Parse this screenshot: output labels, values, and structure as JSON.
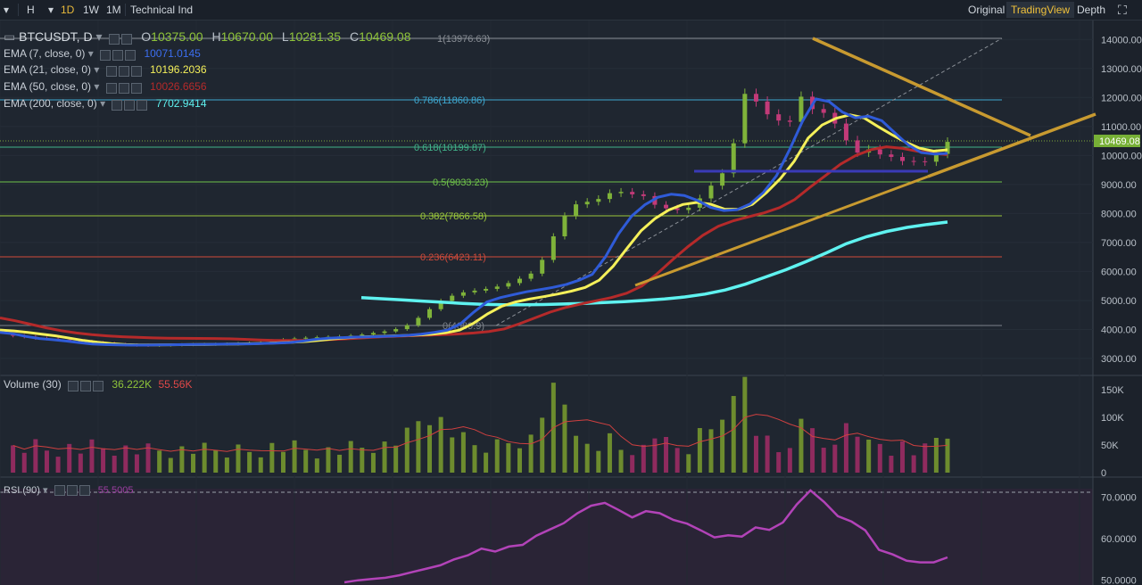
{
  "toolbar": {
    "arrow_label": "▾",
    "interval_label": "H",
    "intervals": [
      "1D",
      "1W",
      "1M"
    ],
    "active_interval": "1D",
    "indicator_label": "Technical Ind",
    "views": [
      "Original",
      "TradingView",
      "Depth"
    ],
    "active_view": "TradingView"
  },
  "header": {
    "symbol": "BTCUSDT, D",
    "open_label": "O",
    "open": "10375.00",
    "high_label": "H",
    "high": "10670.00",
    "low_label": "L",
    "low": "10281.35",
    "close_label": "C",
    "close": "10469.08"
  },
  "ema": [
    {
      "label": "EMA (7, close, 0)",
      "value": "10071.0145",
      "color": "#2f5bd8"
    },
    {
      "label": "EMA (21, close, 0)",
      "value": "10196.2036",
      "color": "#f5f05a"
    },
    {
      "label": "EMA (50, close, 0)",
      "value": "10026.6656",
      "color": "#b52a2a"
    },
    {
      "label": "EMA (200, close, 0)",
      "value": "7702.9414",
      "color": "#5ff2f0"
    }
  ],
  "price_label": "10469.08",
  "volume": {
    "label": "Volume (30)",
    "v1": "36.222K",
    "v2": "55.56K"
  },
  "rsi": {
    "label": "RSI (90)",
    "value": "55.5005"
  },
  "fib": [
    {
      "label": "1(13976.63)",
      "color": "#8a8f96"
    },
    {
      "label": "0.786(11860.86)",
      "color": "#3fa8d0"
    },
    {
      "label": "0.618(10199.87)",
      "color": "#41b28a"
    },
    {
      "label": "0.5(9033.23)",
      "color": "#6fc24a"
    },
    {
      "label": "0.382(7866.58)",
      "color": "#9cc83c"
    },
    {
      "label": "0.236(6423.11)",
      "color": "#d04a3a"
    },
    {
      "label": "0(4089.9)",
      "color": "#7d838b"
    }
  ],
  "price_axis": [
    "14000.00",
    "13000.00",
    "12000.00",
    "11000.00",
    "10000.00",
    "9000.00",
    "8000.00",
    "7000.00",
    "6000.00",
    "5000.00",
    "4000.00",
    "3000.00"
  ],
  "volume_axis": [
    "150K",
    "100K",
    "50K",
    "0"
  ],
  "rsi_axis": [
    "70.0000",
    "60.0000",
    "50.0000"
  ],
  "chart_data": {
    "type": "line",
    "title": "BTCUSDT, D",
    "price_ylim": [
      2600,
      14500
    ],
    "rsi_ylim": [
      48,
      72
    ],
    "candles": [
      3820,
      3785,
      3750,
      3700,
      3680,
      3650,
      3612,
      3590,
      3550,
      3520,
      3490,
      3470,
      3460,
      3455,
      3462,
      3470,
      3478,
      3486,
      3490,
      3495,
      3500,
      3515,
      3530,
      3560,
      3610,
      3650,
      3690,
      3715,
      3732,
      3746,
      3760,
      3790,
      3826,
      3880,
      3933,
      4013,
      4146,
      4400,
      4700,
      4988,
      5164,
      5280,
      5340,
      5400,
      5480,
      5600,
      5750,
      5927,
      6400,
      7212,
      7918,
      8315,
      8404,
      8500,
      8700,
      8745,
      8660,
      8600,
      8300,
      8180,
      8120,
      8200,
      8520,
      8960,
      9386,
      10420,
      12124,
      11861,
      11420,
      11204,
      11160,
      12027,
      11600,
      11470,
      11100,
      10520,
      10100,
      10209,
      10035,
      9950,
      9810,
      9800,
      9785,
      10056,
      10469
    ],
    "ema7": [
      3900,
      3850,
      3760,
      3690,
      3650,
      3602,
      3550,
      3500,
      3480,
      3470,
      3460,
      3462,
      3468,
      3474,
      3480,
      3485,
      3490,
      3495,
      3500,
      3505,
      3520,
      3530,
      3550,
      3600,
      3660,
      3700,
      3720,
      3738,
      3748,
      3762,
      3776,
      3800,
      3838,
      3900,
      3977,
      4200,
      4600,
      4950,
      5096,
      5200,
      5300,
      5370,
      5450,
      5550,
      5700,
      5900,
      6500,
      7300,
      7910,
      8300,
      8560,
      8665,
      8620,
      8450,
      8210,
      8100,
      8130,
      8330,
      8720,
      9300,
      10200,
      11200,
      11950,
      11860,
      11500,
      11300,
      11350,
      11200,
      10780,
      10370,
      10100,
      10050,
      10071
    ],
    "ema21": [
      3980,
      3950,
      3900,
      3840,
      3780,
      3700,
      3620,
      3560,
      3510,
      3480,
      3470,
      3471,
      3472,
      3476,
      3480,
      3486,
      3493,
      3500,
      3510,
      3522,
      3540,
      3560,
      3588,
      3630,
      3680,
      3720,
      3745,
      3760,
      3775,
      3790,
      3810,
      3840,
      3886,
      3980,
      4220,
      4540,
      4800,
      4950,
      5050,
      5130,
      5220,
      5320,
      5450,
      5700,
      6180,
      6800,
      7400,
      7820,
      8120,
      8310,
      8380,
      8320,
      8150,
      8140,
      8320,
      8720,
      9200,
      9800,
      10600,
      11050,
      11280,
      11400,
      11300,
      11000,
      10720,
      10460,
      10250,
      10150,
      10196
    ],
    "ema50": [
      4400,
      4300,
      4180,
      4060,
      3960,
      3880,
      3820,
      3780,
      3750,
      3728,
      3710,
      3700,
      3695,
      3692,
      3690,
      3680,
      3662,
      3640,
      3625,
      3620,
      3625,
      3640,
      3660,
      3690,
      3720,
      3750,
      3770,
      3786,
      3802,
      3820,
      3845,
      3880,
      3930,
      4020,
      4200,
      4400,
      4600,
      4760,
      4880,
      4990,
      5100,
      5250,
      5500,
      5920,
      6400,
      6850,
      7250,
      7560,
      7750,
      7890,
      8020,
      8200,
      8480,
      8900,
      9300,
      9700,
      10000,
      10200,
      10300,
      10250,
      10150,
      10080,
      10027
    ],
    "ema200": [
      5100,
      5060,
      5020,
      4980,
      4940,
      4900,
      4870,
      4850,
      4850,
      4860,
      4880,
      4900,
      4930,
      4960,
      5000,
      5050,
      5120,
      5220,
      5360,
      5560,
      5810,
      6060,
      6340,
      6640,
      6960,
      7200,
      7380,
      7520,
      7620,
      7703
    ],
    "rsi": [
      49.5,
      50,
      50.3,
      50.6,
      51.2,
      52,
      52.8,
      53.6,
      55,
      56,
      57.6,
      56.9,
      58.1,
      58.5,
      60.7,
      62.2,
      63.7,
      66.1,
      67.9,
      68.6,
      66.9,
      65.1,
      66.6,
      66.1,
      64.5,
      63.6,
      62,
      60.3,
      60.8,
      60.5,
      62.7,
      62.1,
      63.9,
      68.2,
      71.6,
      68.8,
      65.4,
      64.1,
      62,
      57.3,
      56.2,
      54.7,
      54.3,
      54.3,
      55.5
    ]
  }
}
